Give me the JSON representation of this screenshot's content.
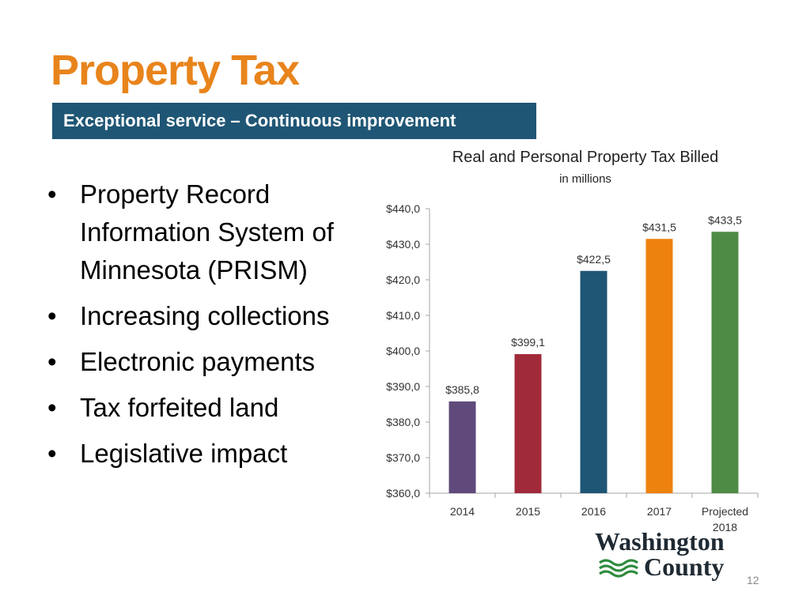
{
  "slide": {
    "title": "Property Tax",
    "banner": "Exceptional service – Continuous improvement",
    "bullets": [
      "Property Record Information System of Minnesota (PRISM)",
      "Increasing collections",
      "Electronic payments",
      "Tax forfeited land",
      "Legislative impact"
    ],
    "page_number": "12",
    "logo": {
      "line1": "Washington",
      "line2": "County",
      "icon": "wave-lines-icon",
      "wave_color": "#2e8b3e",
      "text_color": "#1f2a33"
    }
  },
  "colors": {
    "title": "#e8841c",
    "banner_bg": "#1f5675",
    "banner_text": "#ffffff"
  },
  "chart_data": {
    "type": "bar",
    "title": "Real and Personal Property Tax Billed",
    "subtitle": "in millions",
    "categories": [
      "2014",
      "2015",
      "2016",
      "2017",
      "Projected 2018"
    ],
    "values": [
      385.8,
      399.1,
      422.5,
      431.5,
      433.5
    ],
    "data_labels": [
      "$385,8",
      "$399,1",
      "$422,5",
      "$431,5",
      "$433,5"
    ],
    "bar_colors": [
      "#5f4a7b",
      "#a12a3a",
      "#1f5675",
      "#ee820f",
      "#4e8b44"
    ],
    "ylim": [
      360,
      440
    ],
    "ytick_values": [
      360,
      370,
      380,
      390,
      400,
      410,
      420,
      430,
      440
    ],
    "ytick_labels": [
      "$360,0",
      "$370,0",
      "$380,0",
      "$390,0",
      "$400,0",
      "$410,0",
      "$420,0",
      "$430,0",
      "$440,0"
    ],
    "grid": false,
    "legend": "none"
  }
}
